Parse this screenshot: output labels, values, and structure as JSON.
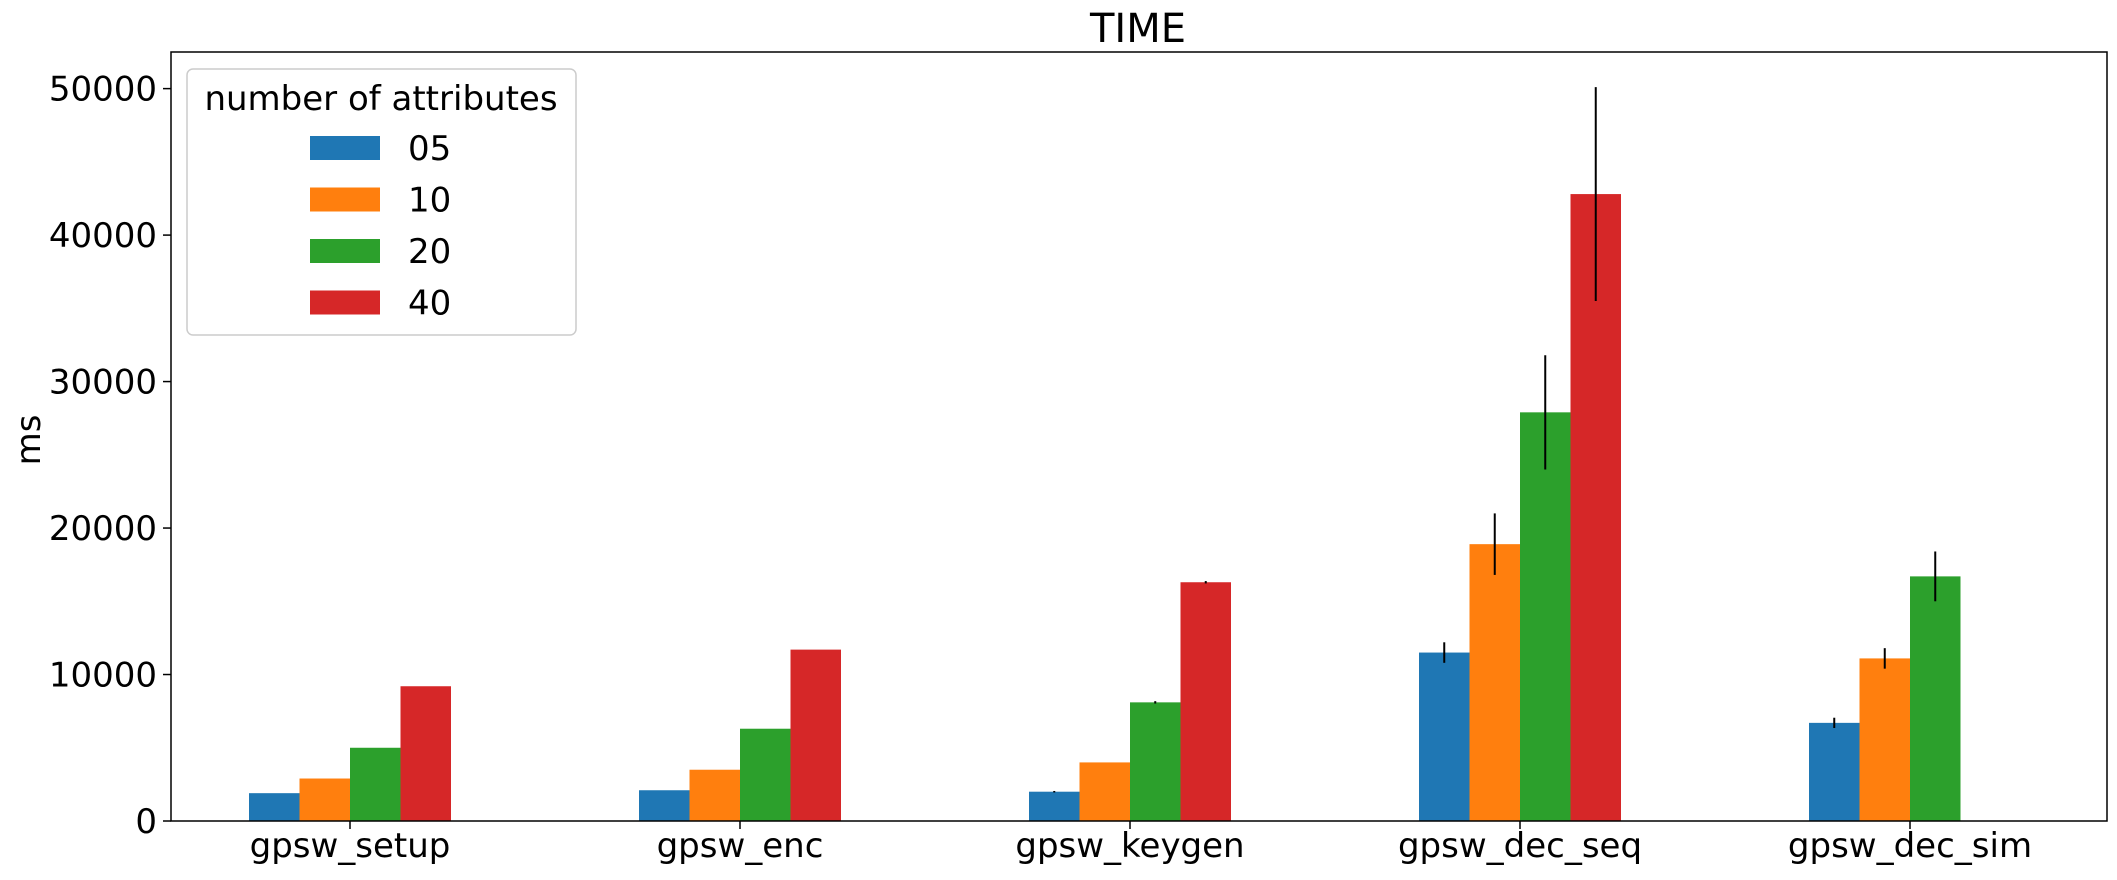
{
  "chart_data": {
    "type": "bar",
    "title": "TIME",
    "xlabel": "",
    "ylabel": "ms",
    "ylim": [
      0,
      52500
    ],
    "yticks": [
      0,
      10000,
      20000,
      30000,
      40000,
      50000
    ],
    "categories": [
      "gpsw_setup",
      "gpsw_enc",
      "gpsw_keygen",
      "gpsw_dec_seq",
      "gpsw_dec_sim"
    ],
    "legend": {
      "title": "number of attributes",
      "placement": "top-left"
    },
    "grid": false,
    "series": [
      {
        "name": "05",
        "color": "#1f77b4",
        "values": [
          1900,
          2100,
          2000,
          11500,
          6700
        ],
        "errors": [
          0,
          0,
          50,
          700,
          350
        ]
      },
      {
        "name": "10",
        "color": "#ff7f0e",
        "values": [
          2900,
          3500,
          4000,
          18900,
          11100
        ],
        "errors": [
          0,
          0,
          0,
          2100,
          700
        ]
      },
      {
        "name": "20",
        "color": "#2ca02c",
        "values": [
          5000,
          6300,
          8100,
          27900,
          16700
        ],
        "errors": [
          0,
          0,
          80,
          3900,
          1700
        ]
      },
      {
        "name": "40",
        "color": "#d62728",
        "values": [
          9200,
          11700,
          16300,
          42800,
          0
        ],
        "errors": [
          0,
          0,
          80,
          7300,
          0
        ]
      }
    ]
  }
}
